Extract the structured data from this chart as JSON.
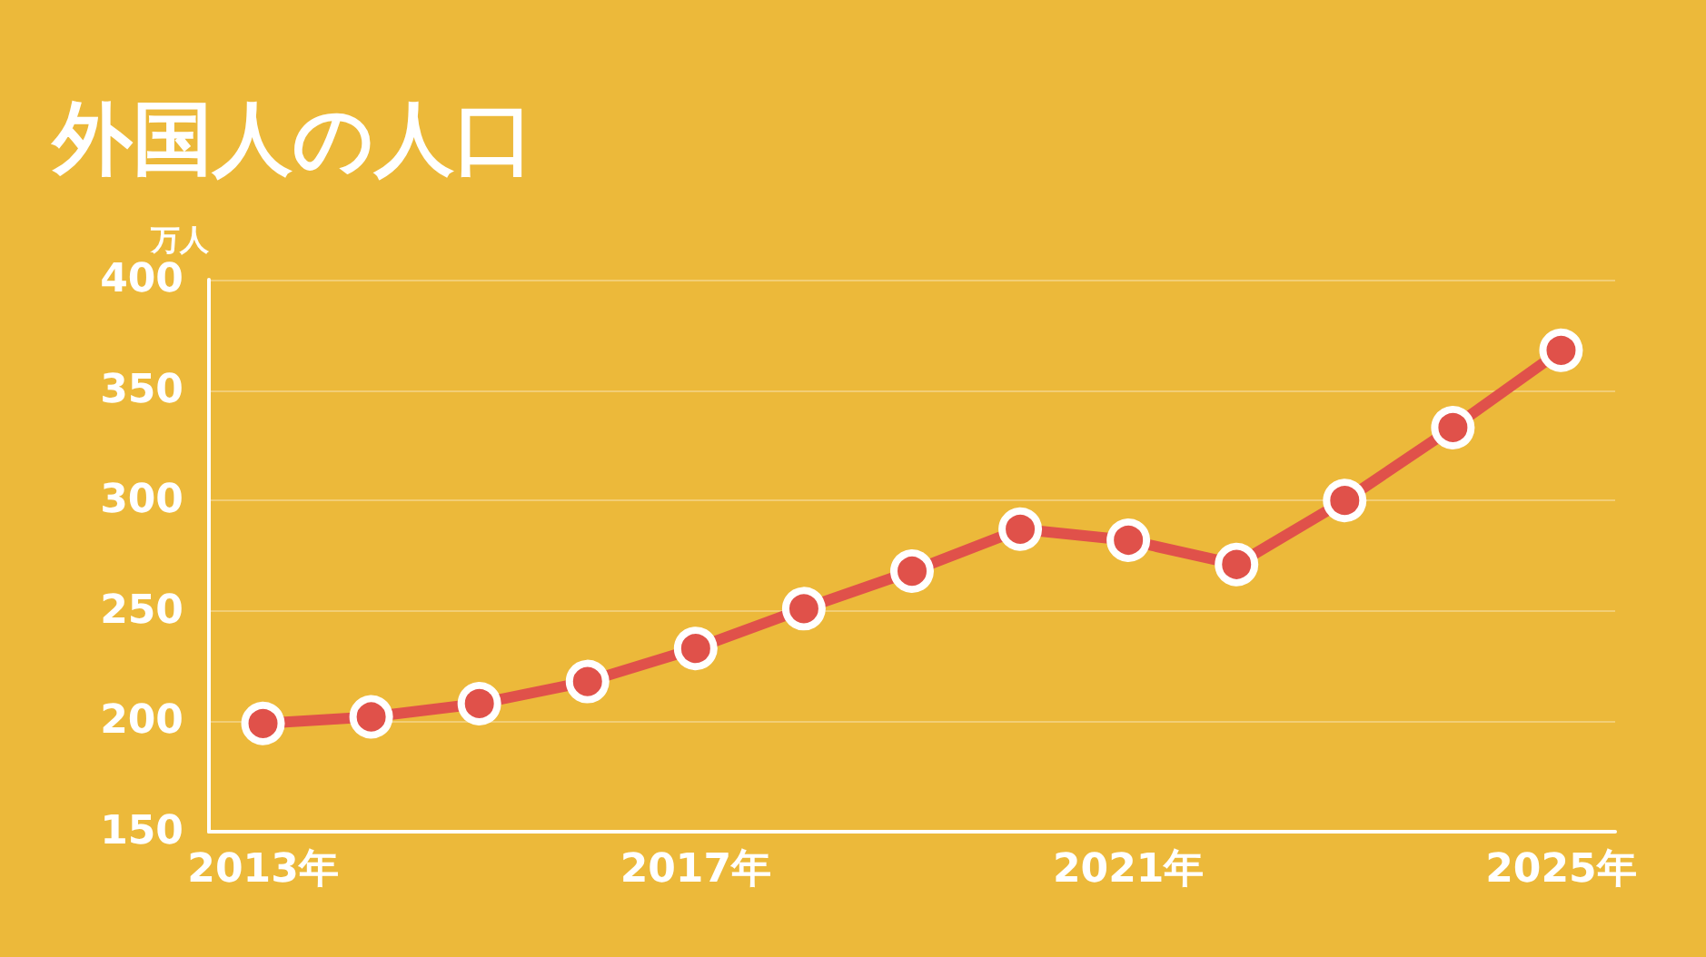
{
  "chart_data": {
    "type": "line",
    "title": "外国人の人口",
    "ylabel": "万人",
    "categories": [
      "2013年",
      null,
      null,
      null,
      "2017年",
      null,
      null,
      null,
      "2021年",
      null,
      null,
      null,
      "2025年"
    ],
    "series": [
      {
        "color": "#e0514a",
        "values": [
          199,
          202,
          208,
          218,
          233,
          251,
          268,
          287,
          282,
          271,
          300,
          333,
          368
        ]
      }
    ],
    "ylim": [
      150,
      400
    ],
    "yticks": [
      150,
      200,
      250,
      300,
      350,
      400
    ],
    "grid": "y",
    "marker": "circle",
    "line_style": "solid"
  }
}
